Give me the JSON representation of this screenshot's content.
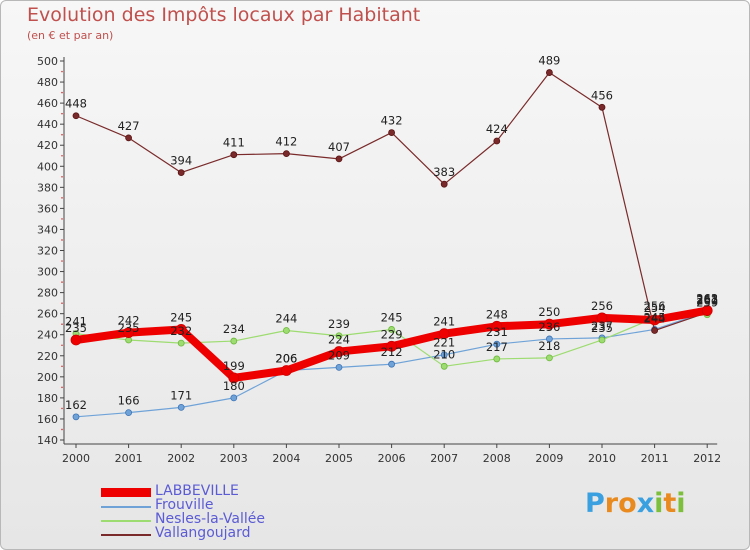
{
  "header": {
    "title": "Evolution des Impôts locaux par Habitant",
    "subtitle": "(en € et par an)"
  },
  "logo": {
    "text": "Proxiti",
    "letters": [
      "P",
      "r",
      "o",
      "x",
      "i",
      "t",
      "i"
    ],
    "colors": [
      "#3aa0e0",
      "#e98a1f",
      "#e98a1f",
      "#3aa0e0",
      "#7cbf3a",
      "#e98a1f",
      "#7cbf3a"
    ]
  },
  "chart_data": {
    "type": "line",
    "title": "Evolution des Impôts locaux par Habitant",
    "subtitle": "(en € et par an)",
    "xlabel": "",
    "ylabel": "",
    "ylim": [
      140,
      500
    ],
    "ytick_step": 20,
    "grid": false,
    "legend": "bottom-left",
    "categories": [
      "2000",
      "2001",
      "2002",
      "2003",
      "2004",
      "2005",
      "2006",
      "2007",
      "2008",
      "2009",
      "2010",
      "2011",
      "2012"
    ],
    "series": [
      {
        "name": "LABBEVILLE",
        "color": "#ee0000",
        "width": 8,
        "values": [
          235,
          242,
          245,
          199,
          206,
          224,
          229,
          241,
          248,
          250,
          256,
          254,
          263
        ]
      },
      {
        "name": "Frouville",
        "color": "#6fa3d8",
        "width": 1.2,
        "values": [
          162,
          166,
          171,
          180,
          206,
          209,
          212,
          221,
          231,
          236,
          237,
          245,
          262
        ]
      },
      {
        "name": "Nesles-la-Vallée",
        "color": "#9ddc70",
        "width": 1.2,
        "values": [
          241,
          235,
          232,
          234,
          244,
          239,
          245,
          210,
          217,
          218,
          235,
          256,
          259
        ]
      },
      {
        "name": "Vallangoujard",
        "color": "#7a2a2a",
        "width": 1.2,
        "values": [
          448,
          427,
          394,
          411,
          412,
          407,
          432,
          383,
          424,
          489,
          456,
          244,
          261
        ]
      }
    ]
  }
}
